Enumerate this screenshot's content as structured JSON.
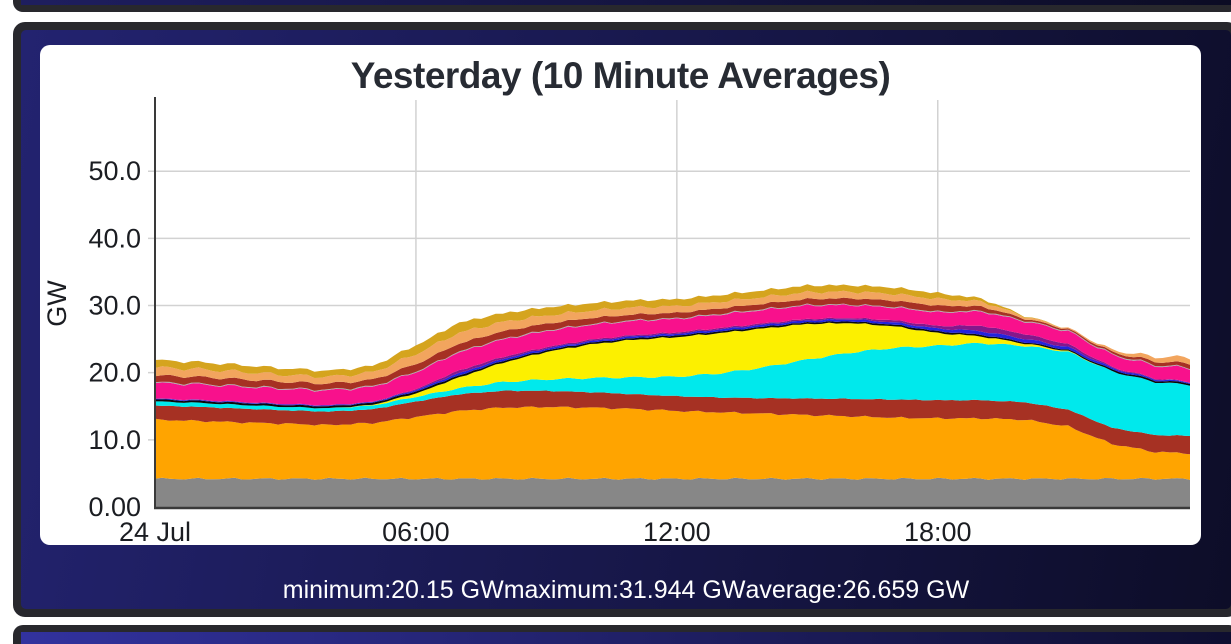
{
  "panel": {
    "border_color": "#28282d",
    "background_gradient_left": "#232370",
    "background_gradient_right": "#0d0d28",
    "card_background": "#ffffff",
    "stats_text_color": "#ffffff",
    "stats": {
      "minimum_label": "minimum:",
      "minimum_value": "20.15 GW",
      "maximum_label": "maximum:",
      "maximum_value": "31.944 GW",
      "average_label": "average:",
      "average_value": "26.659 GW"
    }
  },
  "chart_data": {
    "type": "area",
    "stacked": true,
    "title": "Yesterday (10 Minute Averages)",
    "ylabel": "GW",
    "x_unit": "hours since midnight 24 Jul",
    "xlim": [
      0,
      23.8
    ],
    "ylim": [
      0,
      60.6
    ],
    "grid": true,
    "grid_x_at": [
      6,
      12,
      18
    ],
    "legend": "none",
    "axis_color": "#3a3a3a",
    "grid_color": "#d2d2d2",
    "tick_color": "#1b1d22",
    "title_color": "#272b33",
    "wiggle": 0.09,
    "yticks": [
      {
        "v": 0,
        "label": "0.00"
      },
      {
        "v": 10,
        "label": "10.0"
      },
      {
        "v": 20,
        "label": "20.0"
      },
      {
        "v": 30,
        "label": "30.0"
      },
      {
        "v": 40,
        "label": "40.0"
      },
      {
        "v": 50,
        "label": "50.0"
      }
    ],
    "xticks": [
      {
        "t": 0,
        "label": "24 Jul"
      },
      {
        "t": 6,
        "label": "06:00"
      },
      {
        "t": 12,
        "label": "12:00"
      },
      {
        "t": 18,
        "label": "18:00"
      }
    ],
    "x": [
      0,
      1,
      2,
      3,
      4,
      5,
      6,
      7,
      8,
      9,
      10,
      11,
      12,
      13,
      14,
      15,
      16,
      17,
      18,
      19,
      20,
      21,
      22,
      23,
      23.8
    ],
    "series": [
      {
        "name": "gray",
        "color": "#878787",
        "values": [
          4.2,
          4.2,
          4.2,
          4.2,
          4.2,
          4.2,
          4.2,
          4.2,
          4.2,
          4.2,
          4.2,
          4.2,
          4.2,
          4.2,
          4.2,
          4.2,
          4.2,
          4.2,
          4.2,
          4.2,
          4.2,
          4.2,
          4.2,
          4.2,
          4.2
        ]
      },
      {
        "name": "orange",
        "color": "#ffa400",
        "values": [
          8.8,
          8.6,
          8.4,
          8.2,
          8.0,
          8.3,
          9.2,
          10.1,
          10.6,
          10.7,
          10.6,
          10.4,
          10.1,
          9.9,
          9.7,
          9.5,
          9.3,
          9.1,
          9.0,
          9.0,
          8.8,
          7.8,
          5.2,
          4.0,
          3.8
        ]
      },
      {
        "name": "dark-red",
        "color": "#a63123",
        "values": [
          2.1,
          2.1,
          2.05,
          2.0,
          2.0,
          2.05,
          2.3,
          2.5,
          2.5,
          2.4,
          2.3,
          2.2,
          2.2,
          2.2,
          2.3,
          2.45,
          2.6,
          2.7,
          2.7,
          2.7,
          2.6,
          2.5,
          2.4,
          2.5,
          2.6
        ]
      },
      {
        "name": "cyan",
        "color": "#00e9ec",
        "values": [
          0.6,
          0.6,
          0.55,
          0.5,
          0.5,
          0.55,
          0.7,
          0.9,
          1.3,
          1.7,
          2.1,
          2.5,
          2.9,
          3.6,
          4.6,
          5.8,
          6.9,
          7.7,
          8.1,
          8.5,
          8.4,
          8.6,
          8.4,
          7.9,
          7.6
        ]
      },
      {
        "name": "yellow",
        "color": "#fcf000",
        "values": [
          0,
          0,
          0,
          0,
          0,
          0.1,
          0.5,
          1.6,
          2.9,
          4.1,
          5.0,
          5.6,
          5.9,
          6.0,
          5.8,
          5.3,
          4.4,
          3.2,
          1.9,
          1.0,
          0.35,
          0.1,
          0,
          0,
          0
        ]
      },
      {
        "name": "black",
        "color": "#0a0a0a",
        "values": [
          0.3,
          0.3,
          0.3,
          0.3,
          0.3,
          0.3,
          0.3,
          0.3,
          0.25,
          0.25,
          0.25,
          0.25,
          0.25,
          0.25,
          0.25,
          0.25,
          0.25,
          0.25,
          0.25,
          0.25,
          0.2,
          0.2,
          0.25,
          0.25,
          0.25
        ]
      },
      {
        "name": "blue",
        "color": "#2323dd",
        "values": [
          0.1,
          0.1,
          0.1,
          0.1,
          0.1,
          0.1,
          0.2,
          0.35,
          0.3,
          0.25,
          0.25,
          0.25,
          0.25,
          0.3,
          0.3,
          0.3,
          0.3,
          0.35,
          0.4,
          0.55,
          0.5,
          0.4,
          0.25,
          0.2,
          0.15
        ]
      },
      {
        "name": "purple",
        "color": "#84188c",
        "values": [
          0.05,
          0.05,
          0.05,
          0.05,
          0.05,
          0.05,
          0.15,
          0.4,
          0.3,
          0.2,
          0.2,
          0.2,
          0.2,
          0.2,
          0.2,
          0.2,
          0.2,
          0.3,
          0.4,
          0.8,
          0.7,
          0.45,
          0.15,
          0.1,
          0.05
        ]
      },
      {
        "name": "magenta",
        "color": "#f8118c",
        "values": [
          2.3,
          2.3,
          2.25,
          2.2,
          2.2,
          2.2,
          2.5,
          2.7,
          2.6,
          2.4,
          2.2,
          2.1,
          2.0,
          2.0,
          2.0,
          2.0,
          1.9,
          1.9,
          2.0,
          2.1,
          1.9,
          1.9,
          1.8,
          1.9,
          2.0
        ]
      },
      {
        "name": "light-gray",
        "color": "#ababab",
        "values": [
          0.12,
          0.12,
          0.12,
          0.12,
          0.12,
          0.12,
          0.12,
          0.12,
          0.12,
          0.12,
          0.12,
          0.12,
          0.12,
          0.12,
          0.12,
          0.12,
          0.12,
          0.12,
          0.12,
          0.12,
          0.12,
          0.12,
          0.12,
          0.12,
          0.12
        ]
      },
      {
        "name": "dark-red-2",
        "color": "#a63123",
        "values": [
          1.0,
          1.0,
          1.0,
          0.95,
          0.9,
          0.95,
          1.1,
          1.2,
          1.1,
          1.0,
          0.9,
          0.85,
          0.8,
          0.8,
          0.8,
          0.85,
          0.9,
          0.9,
          0.9,
          0.65,
          0.3,
          0.2,
          0.3,
          0.5,
          0.6
        ]
      },
      {
        "name": "sandy",
        "color": "#f2a55e",
        "values": [
          1.2,
          1.15,
          1.1,
          1.05,
          1.0,
          1.1,
          1.5,
          1.6,
          1.4,
          1.2,
          1.1,
          1.05,
          1.0,
          1.0,
          1.0,
          1.0,
          1.0,
          1.0,
          1.0,
          0.75,
          0.3,
          0.15,
          0.3,
          0.7,
          0.9
        ]
      },
      {
        "name": "gold",
        "color": "#d5a41e",
        "values": [
          1.1,
          1.05,
          1.0,
          0.95,
          0.9,
          0.95,
          1.3,
          1.5,
          1.3,
          1.2,
          1.1,
          1.05,
          1.0,
          1.0,
          1.0,
          1.0,
          0.95,
          0.95,
          0.85,
          0.45,
          0.1,
          0,
          0,
          0,
          0
        ]
      }
    ]
  }
}
